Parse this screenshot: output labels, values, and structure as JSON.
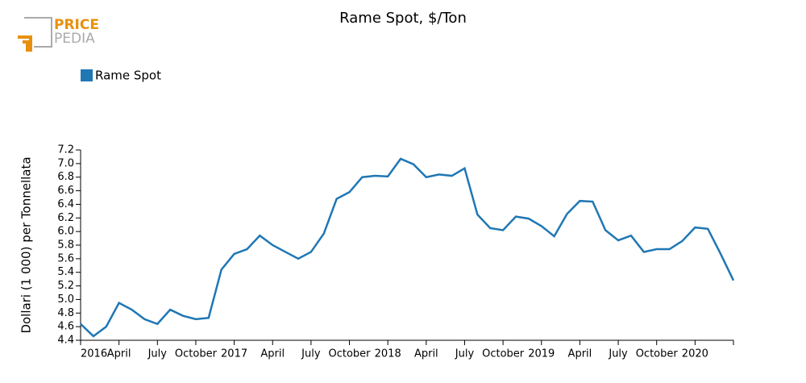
{
  "logo": {
    "line1": "PRICE",
    "line2": "PEDIA"
  },
  "chart_data": {
    "type": "line",
    "title": "Rame Spot, $/Ton",
    "y_label": "Dollari (1 000) per Tonnellata",
    "categories": [
      "2016",
      null,
      null,
      "April",
      null,
      null,
      "July",
      null,
      null,
      "October",
      null,
      null,
      "2017",
      null,
      null,
      "April",
      null,
      null,
      "July",
      null,
      null,
      "October",
      null,
      null,
      "2018",
      null,
      null,
      "April",
      null,
      null,
      "July",
      null,
      null,
      "October",
      null,
      null,
      "2019",
      null,
      null,
      "April",
      null,
      null,
      "July",
      null,
      null,
      "October",
      null,
      null,
      "2020",
      null,
      null,
      null
    ],
    "series": [
      {
        "name": "Rame Spot",
        "color": "#1f77b4",
        "values": [
          4.64,
          4.46,
          4.6,
          4.95,
          4.85,
          4.71,
          4.64,
          4.85,
          4.76,
          4.71,
          4.73,
          5.44,
          5.67,
          5.74,
          5.94,
          5.8,
          5.7,
          5.6,
          5.7,
          5.97,
          6.48,
          6.58,
          6.8,
          6.82,
          6.81,
          7.07,
          6.99,
          6.8,
          6.84,
          6.82,
          6.93,
          6.25,
          6.05,
          6.02,
          6.22,
          6.19,
          6.08,
          5.93,
          6.26,
          6.45,
          6.44,
          6.02,
          5.87,
          5.94,
          5.7,
          5.74,
          5.74,
          5.86,
          6.06,
          6.04,
          5.67,
          5.28
        ]
      }
    ],
    "ylim": [
      4.4,
      7.2
    ],
    "yticks": [
      4.4,
      4.6,
      4.8,
      {
        "value": 5,
        "label": "5.0"
      },
      5.2,
      5.4,
      5.6,
      5.8,
      {
        "value": 6,
        "label": "6.0"
      },
      6.2,
      6.4,
      6.6,
      6.8,
      {
        "value": 7,
        "label": "7.0"
      },
      7.2
    ],
    "grid": false,
    "legend": "top-left"
  }
}
